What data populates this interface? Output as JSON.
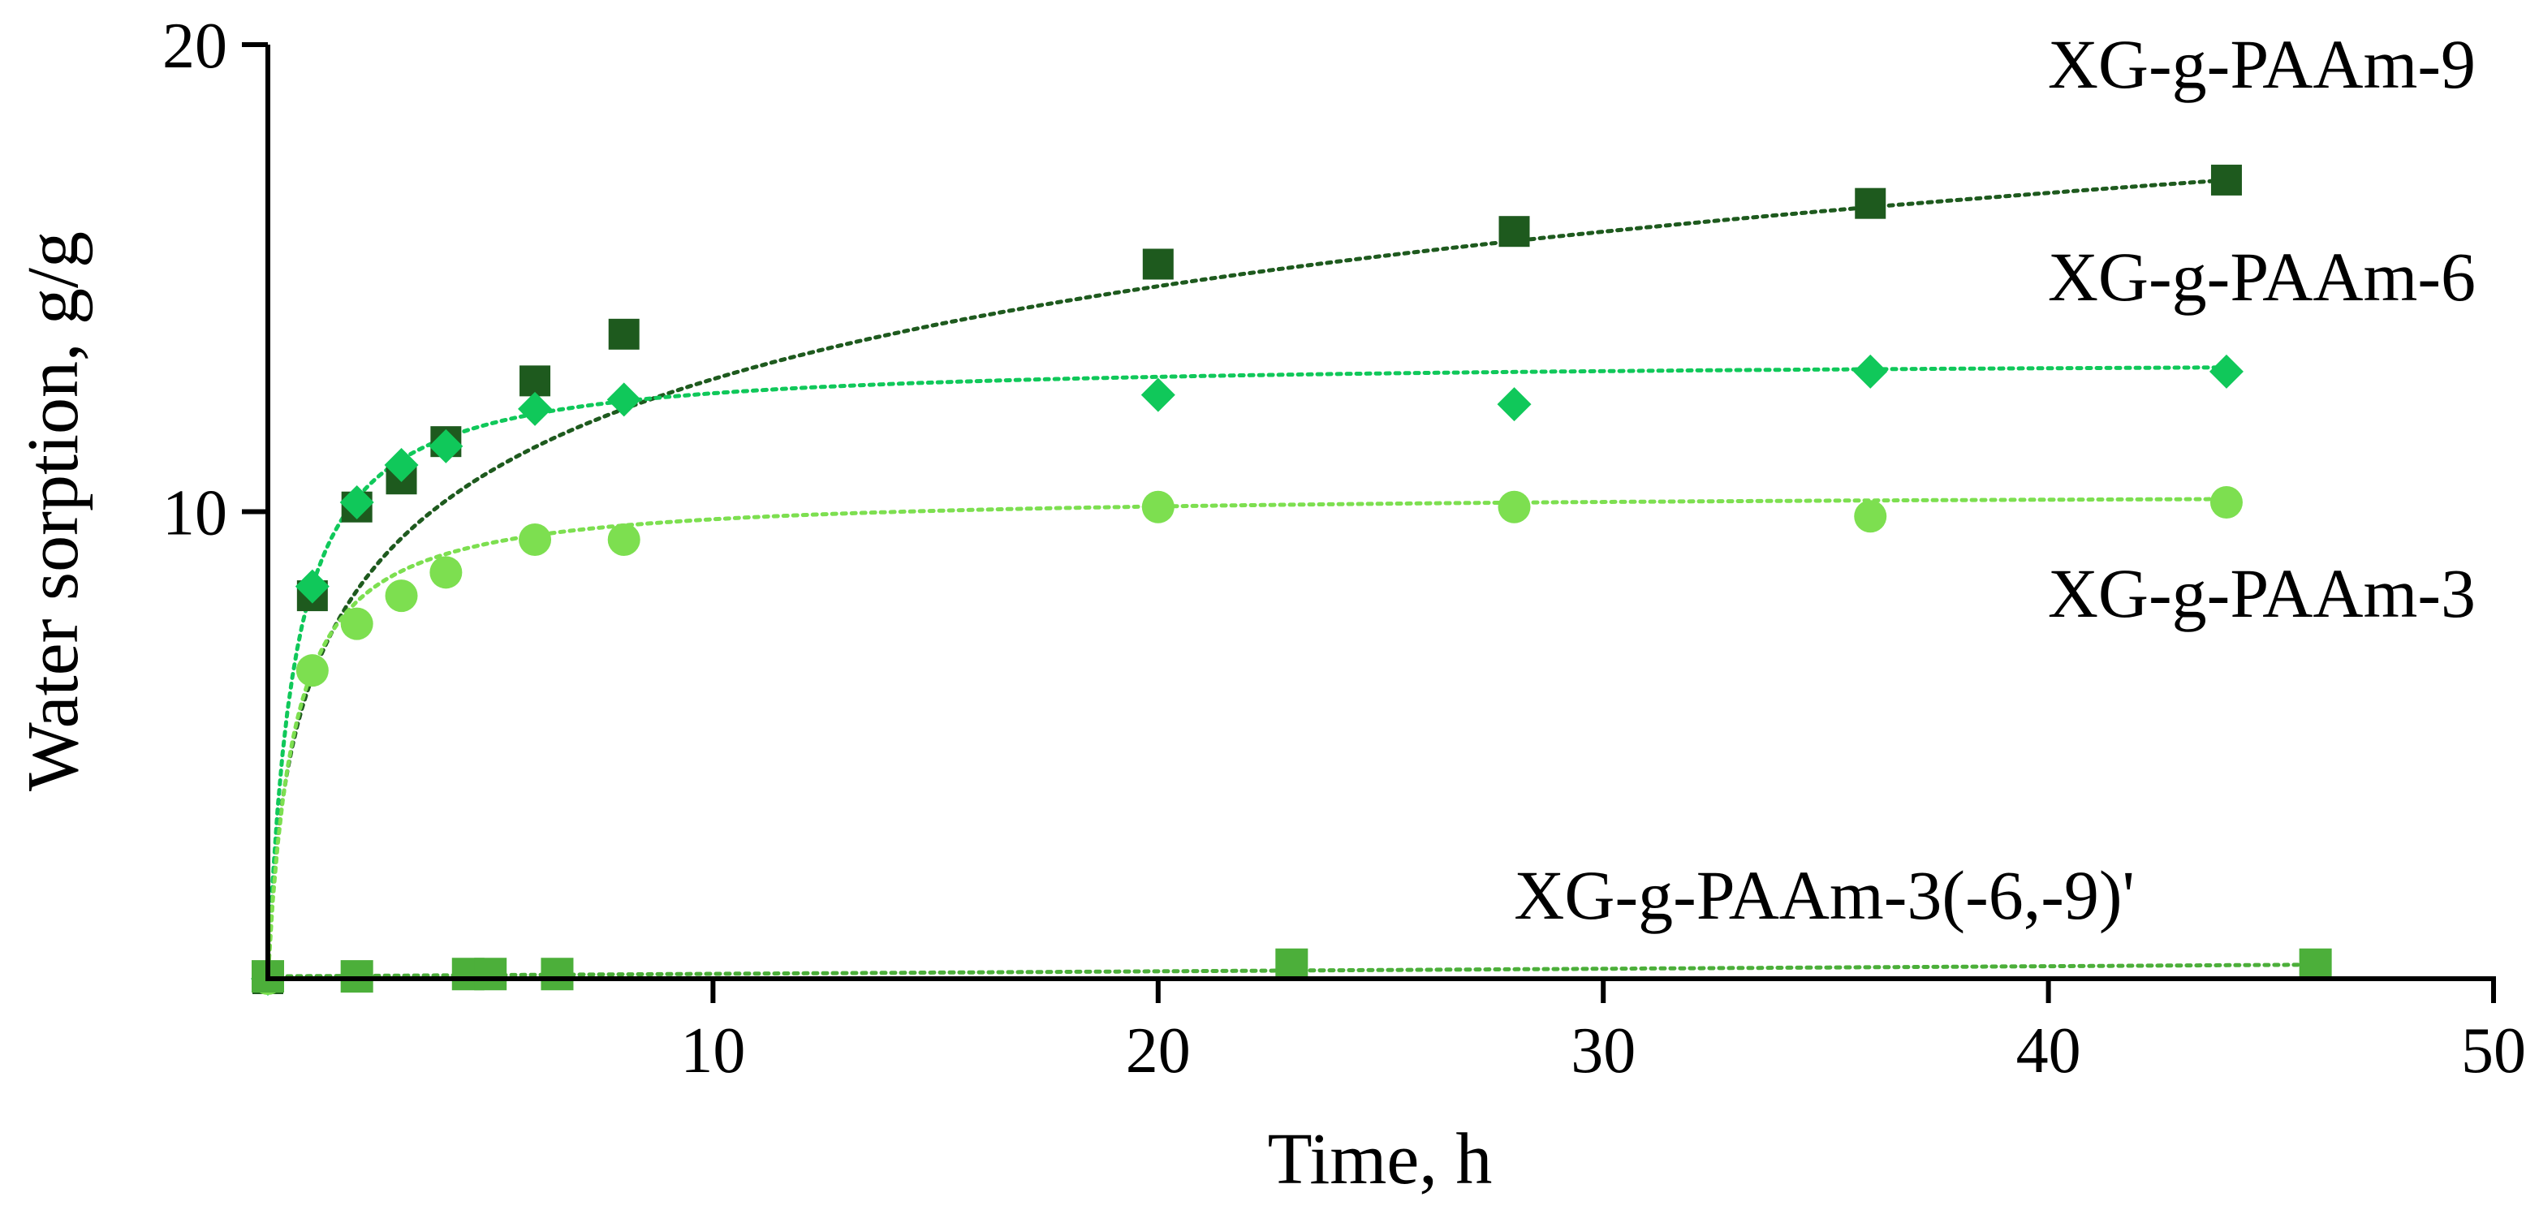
{
  "chart_data": {
    "type": "scatter",
    "title": "",
    "xlabel": "Time, h",
    "ylabel": "Water sorption, g/g",
    "xlim": [
      0,
      50
    ],
    "ylim": [
      0,
      20
    ],
    "xticks": [
      10,
      20,
      30,
      40,
      50
    ],
    "yticks": [
      10,
      20
    ],
    "grid": false,
    "legend": "direct labels at right",
    "series": [
      {
        "name": "XG-g-PAAm-9",
        "color": "#1e5a1e",
        "marker": "square",
        "x": [
          0,
          1,
          2,
          3,
          4,
          6,
          8,
          20,
          28,
          36,
          44
        ],
        "y": [
          0,
          8.2,
          10.1,
          10.7,
          11.5,
          12.8,
          13.8,
          15.3,
          16.0,
          16.6,
          17.1
        ],
        "fit": "log"
      },
      {
        "name": "XG-g-PAAm-6",
        "color": "#10c85a",
        "marker": "diamond",
        "x": [
          0,
          1,
          2,
          3,
          4,
          6,
          8,
          20,
          28,
          36,
          44
        ],
        "y": [
          0,
          8.4,
          10.2,
          11.0,
          11.4,
          12.2,
          12.4,
          12.5,
          12.3,
          13.0,
          13.0
        ],
        "fit": "saturation"
      },
      {
        "name": "XG-g-PAAm-3",
        "color": "#7ddf50",
        "marker": "circle",
        "x": [
          0,
          1,
          2,
          3,
          4,
          6,
          8,
          20,
          28,
          36,
          44
        ],
        "y": [
          0,
          6.6,
          7.6,
          8.2,
          8.7,
          9.4,
          9.4,
          10.1,
          10.1,
          9.9,
          10.2
        ],
        "fit": "saturation"
      },
      {
        "name": "XG-g-PAAm-3(-6,-9)'",
        "color": "#4caf3a",
        "marker": "square",
        "x": [
          0,
          2,
          4.5,
          5,
          6.5,
          23,
          46
        ],
        "y": [
          0.05,
          0.05,
          0.1,
          0.1,
          0.1,
          0.3,
          0.3
        ],
        "fit": "linear"
      }
    ]
  }
}
